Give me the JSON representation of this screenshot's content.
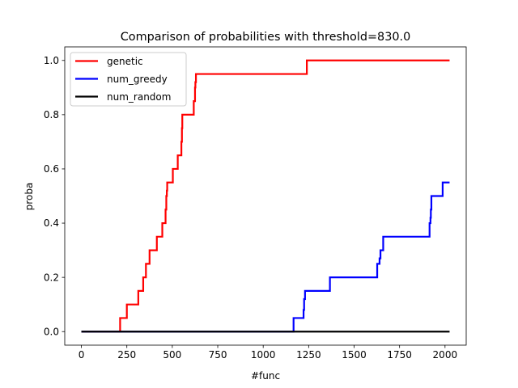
{
  "chart_data": {
    "type": "line",
    "title": "Comparison of probabilities with threshold=830.0",
    "xlabel": "#func",
    "ylabel": "proba",
    "xlim": [
      -91.5,
      2116.5
    ],
    "ylim": [
      -0.05,
      1.05
    ],
    "xticks": [
      0,
      250,
      500,
      750,
      1000,
      1250,
      1500,
      1750,
      2000
    ],
    "xtick_labels": [
      "0",
      "250",
      "500",
      "750",
      "1000",
      "1250",
      "1500",
      "1750",
      "2000"
    ],
    "yticks": [
      0.0,
      0.2,
      0.4,
      0.6,
      0.8,
      1.0
    ],
    "ytick_labels": [
      "0.0",
      "0.2",
      "0.4",
      "0.6",
      "0.8",
      "1.0"
    ],
    "grid": false,
    "legend_position": "top-left",
    "step": "post",
    "series": [
      {
        "name": "genetic",
        "color": "#ff0000",
        "x": [
          0,
          213,
          250,
          313,
          340,
          355,
          375,
          415,
          445,
          463,
          467,
          470,
          472,
          503,
          530,
          550,
          553,
          555,
          618,
          625,
          627,
          630,
          1240,
          2025
        ],
        "y": [
          0.0,
          0.05,
          0.1,
          0.15,
          0.2,
          0.25,
          0.3,
          0.35,
          0.4,
          0.45,
          0.5,
          0.52,
          0.55,
          0.6,
          0.65,
          0.7,
          0.75,
          0.8,
          0.85,
          0.9,
          0.92,
          0.95,
          1.0,
          1.0
        ]
      },
      {
        "name": "num_greedy",
        "color": "#0000ff",
        "x": [
          0,
          1167,
          1222,
          1225,
          1230,
          1367,
          1627,
          1640,
          1645,
          1660,
          1915,
          1920,
          1922,
          1925,
          1987,
          2025
        ],
        "y": [
          0.0,
          0.05,
          0.08,
          0.12,
          0.15,
          0.2,
          0.25,
          0.27,
          0.3,
          0.35,
          0.4,
          0.42,
          0.45,
          0.5,
          0.55,
          0.55
        ]
      },
      {
        "name": "num_random",
        "color": "#000000",
        "x": [
          0,
          2025
        ],
        "y": [
          0.0,
          0.0
        ]
      }
    ]
  }
}
